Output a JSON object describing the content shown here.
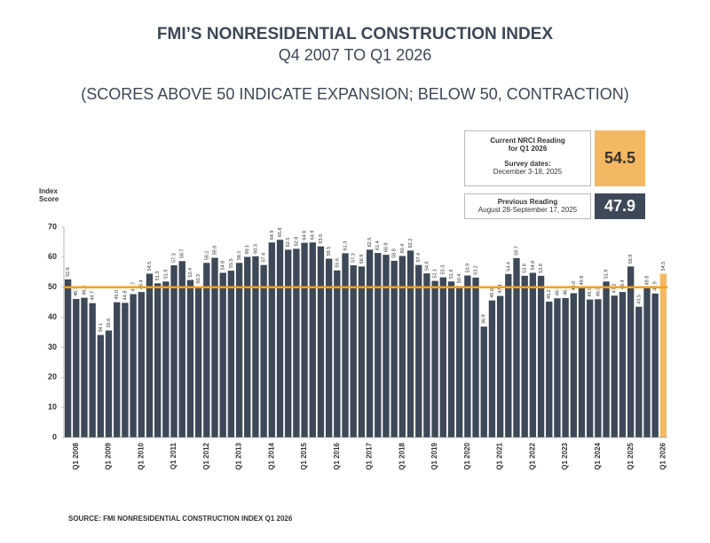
{
  "chart_data": {
    "type": "bar",
    "title": "FMI’S NONRESIDENTIAL CONSTRUCTION INDEX",
    "subtitle": "Q4 2007 TO Q1 2026",
    "note": "(SCORES ABOVE 50 INDICATE EXPANSION; BELOW 50, CONTRACTION)",
    "y_label": "Index Score",
    "source": "SOURCE: FMI NONRESIDENTIAL CONSTRUCTION INDEX Q1 2026",
    "current_reading": {
      "label": "Current NRCI Reading for Q1 2026",
      "dates_label": "Survey dates:",
      "dates": "December 3-18, 2025",
      "value": 54.5,
      "color": "#f5b862"
    },
    "previous_reading": {
      "label": "Previous Reading",
      "dates": "August 28-September 17, 2025",
      "value": 47.9,
      "color": "#3d4858"
    },
    "categories": [
      null,
      "Q1 2008",
      null,
      null,
      null,
      "Q1 2009",
      null,
      null,
      null,
      "Q1 2010",
      null,
      null,
      null,
      "Q1 2011",
      null,
      null,
      null,
      "Q1 2012",
      null,
      null,
      null,
      "Q1 2013",
      null,
      null,
      null,
      "Q1 2014",
      null,
      null,
      null,
      "Q1 2015",
      null,
      null,
      null,
      "Q1 2016",
      null,
      null,
      null,
      "Q1 2017",
      null,
      null,
      null,
      "Q1 2018",
      null,
      null,
      null,
      "Q1 2019",
      null,
      null,
      null,
      "Q1 2020",
      null,
      null,
      null,
      "Q1 2021",
      null,
      null,
      null,
      "Q1 2022",
      null,
      null,
      null,
      "Q1 2023",
      null,
      null,
      null,
      "Q1 2024",
      null,
      null,
      null,
      "Q1 2025",
      null,
      null,
      null,
      "Q1 2026"
    ],
    "values": [
      52.6,
      46.1,
      46.5,
      44.7,
      34.1,
      35.6,
      45.0,
      44.8,
      47.7,
      48.4,
      54.5,
      51.3,
      51.9,
      57.3,
      58.7,
      52.4,
      50.3,
      58.1,
      59.8,
      54.8,
      55.5,
      58.1,
      60.1,
      60.3,
      57.4,
      64.9,
      65.8,
      62.5,
      62.8,
      64.8,
      64.9,
      63.6,
      59.5,
      55.6,
      61.3,
      57.3,
      56.9,
      62.5,
      61.4,
      60.8,
      58.8,
      60.4,
      62.2,
      57.4,
      54.6,
      52.1,
      53.3,
      51.9,
      50.4,
      53.9,
      53.2,
      36.9,
      45.6,
      47.1,
      54.4,
      59.7,
      53.8,
      54.8,
      53.8,
      45.2,
      46.3,
      46.4,
      48.0,
      49.8,
      45.9,
      46.0,
      51.9,
      47.2,
      48.4,
      56.9,
      43.5,
      49.8,
      47.9,
      54.5
    ],
    "value_labels": [
      "52.6",
      "46.1",
      "46.5",
      "44.7",
      "34.1",
      "35.6",
      "45.0",
      "44.8",
      "47.7",
      "48.4",
      "54.5",
      "51.3",
      "51.9",
      "57.3",
      "58.7",
      "52.4",
      "50.3",
      "58.1",
      "59.8",
      "54.8",
      "55.5",
      "58.1",
      "60.1",
      "60.3",
      "57.4",
      "64.9",
      "65.8",
      "62.5",
      "62.8",
      "64.8",
      "64.9",
      "63.6",
      "59.5",
      "55.6",
      "61.3",
      "57.3",
      "56.9",
      "62.5",
      "61.4",
      "60.8",
      "58.8",
      "60.4",
      "62.2",
      "57.4",
      "54.6",
      "52.1",
      "53.3",
      "51.9",
      "50.4",
      "53.9",
      "53.2",
      "36.9",
      "45.6",
      "47.1",
      "54.4",
      "59.7",
      "53.8",
      "54.8",
      "53.8",
      "45.2",
      "46.3",
      "46.4",
      "48.0",
      "49.8",
      "45.9",
      "46.0",
      "51.9",
      "47.2",
      "48.4",
      "56.9",
      "43.5",
      "49.8",
      "47.9",
      "54.5"
    ],
    "color": "#3d4858",
    "last_color": "#f5b862",
    "reference_line": {
      "value": 50,
      "color": "#f5a21e"
    },
    "ylim": [
      0,
      70
    ],
    "yticks": [
      0,
      10,
      20,
      30,
      40,
      50,
      60,
      70
    ]
  }
}
